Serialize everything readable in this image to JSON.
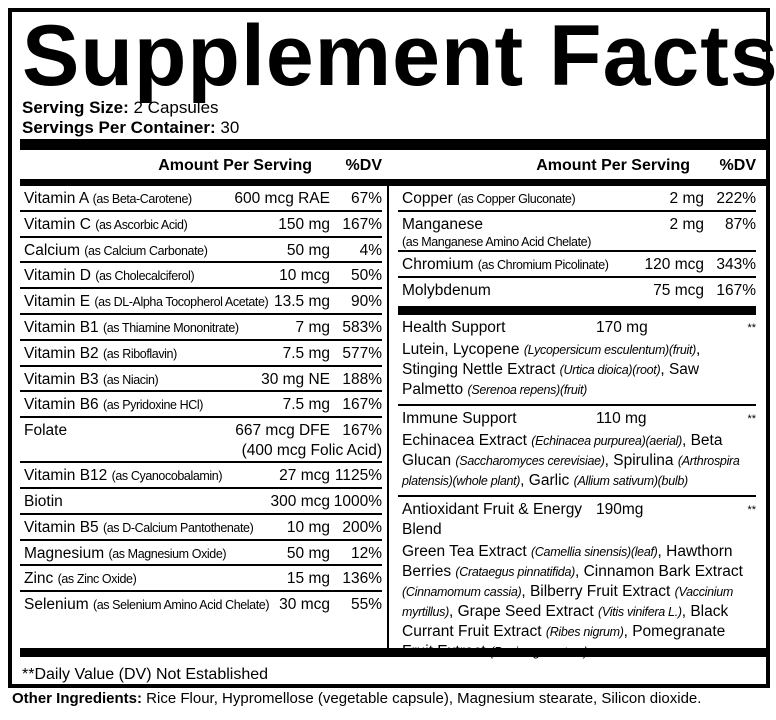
{
  "title": "Supplement Facts",
  "serving_size": {
    "label": "Serving Size:",
    "value": " 2 Capsules"
  },
  "servings_per_container": {
    "label": "Servings Per Container:",
    "value": " 30"
  },
  "headers": {
    "amount": "Amount Per Serving",
    "dv": "%DV"
  },
  "left_rows": [
    {
      "name": "Vitamin A",
      "source": "(as Beta-Carotene)",
      "amount": "600 mcg RAE",
      "dv": "67%"
    },
    {
      "name": "Vitamin C",
      "source": "(as Ascorbic Acid)",
      "amount": "150 mg",
      "dv": "167%"
    },
    {
      "name": "Calcium",
      "source": "(as Calcium Carbonate)",
      "amount": "50 mg",
      "dv": "4%"
    },
    {
      "name": "Vitamin D",
      "source": "(as Cholecalciferol)",
      "amount": "10 mcg",
      "dv": "50%"
    },
    {
      "name": "Vitamin E",
      "source": "(as DL-Alpha Tocopherol Acetate)",
      "amount": "13.5 mg",
      "dv": "90%"
    },
    {
      "name": "Vitamin B1",
      "source": "(as Thiamine Mononitrate)",
      "amount": "7 mg",
      "dv": "583%"
    },
    {
      "name": "Vitamin B2",
      "source": "(as Riboflavin)",
      "amount": "7.5 mg",
      "dv": "577%"
    },
    {
      "name": "Vitamin B3",
      "source": "(as Niacin)",
      "amount": "30 mg NE",
      "dv": "188%"
    },
    {
      "name": "Vitamin B6",
      "source": "(as Pyridoxine HCl)",
      "amount": "7.5 mg",
      "dv": "167%"
    },
    {
      "name": "Folate",
      "source": "",
      "amount": "667 mcg DFE",
      "amount2": "(400 mcg Folic Acid)",
      "dv": "167%"
    },
    {
      "name": "Vitamin B12",
      "source": "(as Cyanocobalamin)",
      "amount": "27 mcg",
      "dv": "1125%"
    },
    {
      "name": "Biotin",
      "source": "",
      "amount": "300 mcg",
      "dv": "1000%"
    },
    {
      "name": "Vitamin B5",
      "source": "(as D-Calcium Pantothenate)",
      "amount": "10 mg",
      "dv": "200%"
    },
    {
      "name": "Magnesium",
      "source": "(as Magnesium Oxide)",
      "amount": "50 mg",
      "dv": "12%"
    },
    {
      "name": "Zinc",
      "source": "(as Zinc Oxide)",
      "amount": "15 mg",
      "dv": "136%"
    },
    {
      "name": "Selenium",
      "source": "(as Selenium Amino Acid Chelate)",
      "amount": "30 mcg",
      "dv": "55%"
    }
  ],
  "right_rows": [
    {
      "name": "Copper",
      "source": "(as Copper Gluconate)",
      "amount": "2 mg",
      "dv": "222%"
    },
    {
      "name": "Manganese",
      "source2": "(as Manganese Amino Acid Chelate)",
      "amount": "2 mg",
      "dv": "87%"
    },
    {
      "name": "Chromium",
      "source": "(as Chromium Picolinate)",
      "amount": "120 mcg",
      "dv": "343%"
    },
    {
      "name": "Molybdenum",
      "source": "",
      "amount": "75 mcg",
      "dv": "167%"
    }
  ],
  "blends": [
    {
      "name": "Health Support",
      "amount": "170 mg",
      "dv": "**",
      "desc": [
        {
          "t": "Lutein, Lycopene "
        },
        {
          "t": "(Lycopersicum esculentum)(fruit)",
          "i": true
        },
        {
          "t": ", Stinging Nettle Extract "
        },
        {
          "t": "(Urtica dioica)(root)",
          "i": true
        },
        {
          "t": ", Saw Palmetto "
        },
        {
          "t": "(Serenoa repens)(fruit)",
          "i": true
        }
      ]
    },
    {
      "name": "Immune Support",
      "amount": "110 mg",
      "dv": "**",
      "desc": [
        {
          "t": "Echinacea Extract "
        },
        {
          "t": "(Echinacea purpurea)(aerial)",
          "i": true
        },
        {
          "t": ", Beta Glucan "
        },
        {
          "t": "(Saccharomyces cerevisiae)",
          "i": true
        },
        {
          "t": ", Spirulina "
        },
        {
          "t": "(Arthrospira platensis)(whole plant)",
          "i": true
        },
        {
          "t": ", Garlic "
        },
        {
          "t": "(Allium sativum)(bulb)",
          "i": true
        }
      ]
    },
    {
      "name": "Antioxidant Fruit & Energy Blend",
      "amount": "190mg",
      "dv": "**",
      "desc": [
        {
          "t": "Green Tea Extract "
        },
        {
          "t": "(Camellia sinensis)(leaf)",
          "i": true
        },
        {
          "t": ", Hawthorn Berries "
        },
        {
          "t": "(Crataegus pinnatifida)",
          "i": true
        },
        {
          "t": ", Cinnamon Bark Extract "
        },
        {
          "t": "(Cinnamomum cassia)",
          "i": true
        },
        {
          "t": ", Bilberry Fruit Extract "
        },
        {
          "t": "(Vaccinium myrtillus)",
          "i": true
        },
        {
          "t": ", Grape Seed Extract "
        },
        {
          "t": "(Vitis vinifera L.)",
          "i": true
        },
        {
          "t": ", Black Currant Fruit Extract "
        },
        {
          "t": "(Ribes nigrum)",
          "i": true
        },
        {
          "t": ", Pomegranate Fruit Extract "
        },
        {
          "t": "(Punica granatum)",
          "i": true
        }
      ]
    }
  ],
  "footnote": "**Daily Value (DV) Not Established",
  "other_ingredients": {
    "label": "Other Ingredients:",
    "value": " Rice Flour, Hypromellose (vegetable capsule), Magnesium stearate, Silicon dioxide."
  }
}
